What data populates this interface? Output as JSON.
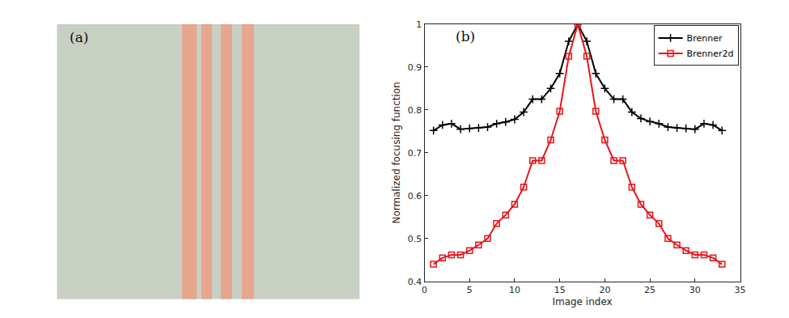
{
  "chart_data": [
    {
      "type": "image",
      "annotations": [
        "(a)"
      ]
    },
    {
      "type": "line",
      "annotations": [
        "(b)"
      ],
      "x_label": "Image index",
      "y_label": "Normalized focusing function",
      "x": [
        1,
        2,
        3,
        4,
        5,
        6,
        7,
        8,
        9,
        10,
        11,
        12,
        13,
        14,
        15,
        16,
        17,
        18,
        19,
        20,
        21,
        22,
        23,
        24,
        25,
        26,
        27,
        28,
        29,
        30,
        31,
        32,
        33
      ],
      "series": [
        {
          "name": "Brenner",
          "color": "#000000",
          "marker": "plus",
          "values": [
            0.752,
            0.765,
            0.768,
            0.755,
            0.757,
            0.758,
            0.76,
            0.768,
            0.772,
            0.778,
            0.795,
            0.825,
            0.825,
            0.85,
            0.885,
            0.96,
            1.0,
            0.96,
            0.885,
            0.85,
            0.825,
            0.825,
            0.795,
            0.78,
            0.773,
            0.768,
            0.76,
            0.758,
            0.757,
            0.755,
            0.768,
            0.765,
            0.752
          ]
        },
        {
          "name": "Brenner2d",
          "color": "#e8141a",
          "marker": "square",
          "values": [
            0.44,
            0.455,
            0.462,
            0.462,
            0.472,
            0.485,
            0.5,
            0.535,
            0.555,
            0.58,
            0.62,
            0.682,
            0.682,
            0.73,
            0.797,
            0.925,
            1.0,
            0.925,
            0.797,
            0.73,
            0.682,
            0.682,
            0.62,
            0.58,
            0.555,
            0.535,
            0.5,
            0.485,
            0.472,
            0.462,
            0.462,
            0.455,
            0.44
          ]
        }
      ],
      "xlim": [
        0,
        35
      ],
      "xticks": [
        0,
        5,
        10,
        15,
        20,
        25,
        30,
        35
      ],
      "ylim": [
        0.4,
        1
      ],
      "yticks": [
        0.4,
        0.5,
        0.6,
        0.7,
        0.8,
        0.9,
        1
      ],
      "grid": false,
      "legend": "upper right"
    }
  ]
}
